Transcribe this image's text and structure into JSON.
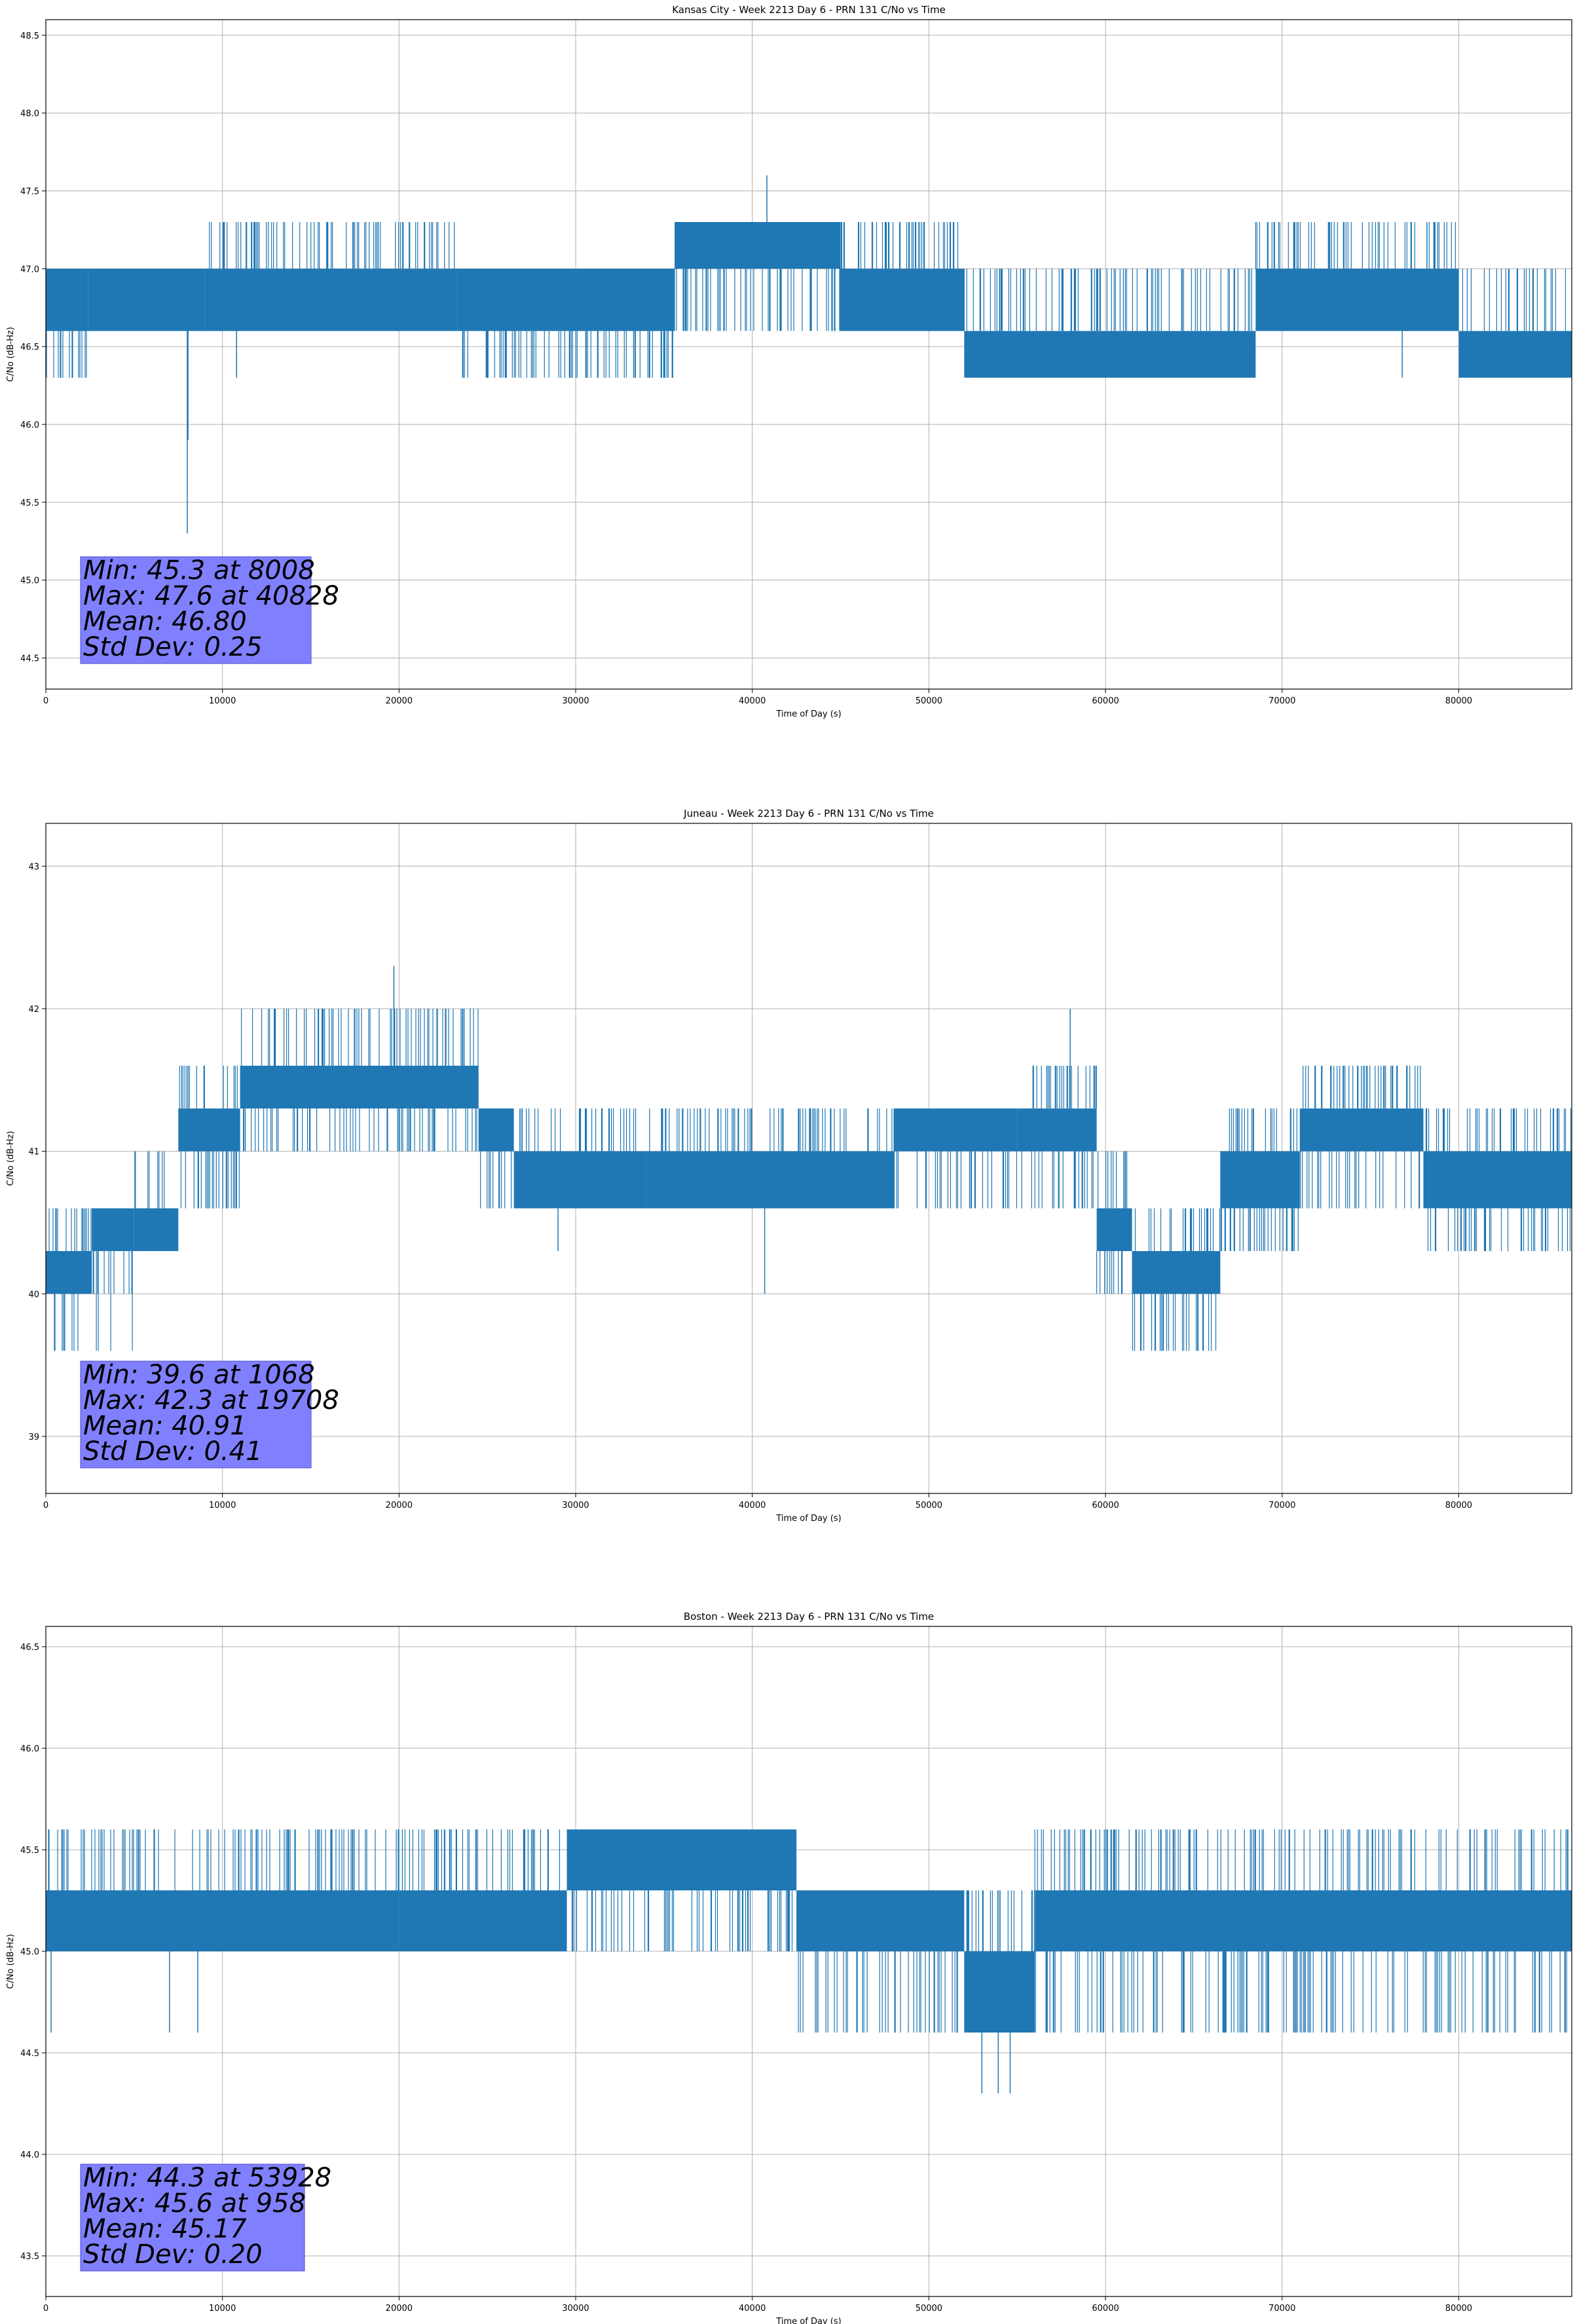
{
  "colors": {
    "series": "#1f77b4",
    "grid": "#b0b0b0",
    "stats_box": "#8080ff",
    "axes": "#000000"
  },
  "chart_data": [
    {
      "type": "line",
      "title": "Kansas City - Week 2213 Day 6 - PRN 131 C/No vs Time",
      "xlabel": "Time of Day (s)",
      "ylabel": "C/No (dB-Hz)",
      "xlim": [
        0,
        86400
      ],
      "ylim": [
        44.3,
        48.6
      ],
      "xticks": [
        0,
        10000,
        20000,
        30000,
        40000,
        50000,
        60000,
        70000,
        80000
      ],
      "yticks": [
        44.5,
        45.0,
        45.5,
        46.0,
        46.5,
        47.0,
        47.5,
        48.0,
        48.5
      ],
      "ytick_labels": [
        "44.5",
        "45.0",
        "45.5",
        "46.0",
        "46.5",
        "47.0",
        "47.5",
        "48.0",
        "48.5"
      ],
      "grid": true,
      "levels": [
        46.3,
        46.6,
        47.0,
        47.3
      ],
      "segments": [
        {
          "x": [
            0,
            2400
          ],
          "range": [
            46.3,
            47.0
          ],
          "band": [
            46.6,
            47.0
          ]
        },
        {
          "x": [
            2400,
            9000
          ],
          "range": [
            46.6,
            47.0
          ],
          "band": [
            46.6,
            47.0
          ]
        },
        {
          "x": [
            9000,
            23300
          ],
          "range": [
            46.6,
            47.3
          ],
          "band": [
            46.6,
            47.0
          ]
        },
        {
          "x": [
            23300,
            35600
          ],
          "range": [
            46.3,
            47.0
          ],
          "band": [
            46.6,
            47.0
          ]
        },
        {
          "x": [
            35600,
            45000
          ],
          "range": [
            46.6,
            47.3
          ],
          "band": [
            47.0,
            47.3
          ]
        },
        {
          "x": [
            45000,
            52000
          ],
          "range": [
            46.6,
            47.3
          ],
          "band": [
            46.6,
            47.0
          ]
        },
        {
          "x": [
            52000,
            68500
          ],
          "range": [
            46.3,
            47.0
          ],
          "band": [
            46.3,
            46.6
          ]
        },
        {
          "x": [
            68500,
            80000
          ],
          "range": [
            46.6,
            47.3
          ],
          "band": [
            46.6,
            47.0
          ]
        },
        {
          "x": [
            80000,
            86400
          ],
          "range": [
            46.3,
            47.0
          ],
          "band": [
            46.3,
            46.6
          ]
        }
      ],
      "spikes": [
        {
          "x": 8008,
          "from": 46.6,
          "to": 45.3
        },
        {
          "x": 8050,
          "from": 46.6,
          "to": 45.9
        },
        {
          "x": 40828,
          "from": 47.3,
          "to": 47.6
        },
        {
          "x": 10800,
          "from": 46.6,
          "to": 46.3
        },
        {
          "x": 54000,
          "from": 46.3,
          "to": 47.0
        },
        {
          "x": 72700,
          "from": 47.0,
          "to": 47.3
        },
        {
          "x": 78200,
          "from": 47.0,
          "to": 47.3
        },
        {
          "x": 76800,
          "from": 46.6,
          "to": 46.3
        }
      ],
      "stats": {
        "min": "Min: 45.3 at 8008",
        "max": "Max: 47.6 at 40828",
        "mean": "Mean: 46.80",
        "std": "Std Dev: 0.25"
      }
    },
    {
      "type": "line",
      "title": "Juneau - Week 2213 Day 6 - PRN 131 C/No vs Time",
      "xlabel": "Time of Day (s)",
      "ylabel": "C/No (dB-Hz)",
      "xlim": [
        0,
        86400
      ],
      "ylim": [
        38.6,
        43.3
      ],
      "xticks": [
        0,
        10000,
        20000,
        30000,
        40000,
        50000,
        60000,
        70000,
        80000
      ],
      "yticks": [
        39,
        40,
        41,
        42,
        43
      ],
      "ytick_labels": [
        "39",
        "40",
        "41",
        "42",
        "43"
      ],
      "grid": true,
      "levels": [
        39.6,
        40.0,
        40.3,
        40.6,
        41.0,
        41.3,
        41.6,
        42.0,
        42.3
      ],
      "segments": [
        {
          "x": [
            0,
            2600
          ],
          "range": [
            39.6,
            40.6
          ],
          "band": [
            40.0,
            40.3
          ]
        },
        {
          "x": [
            2600,
            5000
          ],
          "range": [
            39.6,
            40.6
          ],
          "band": [
            40.3,
            40.6
          ]
        },
        {
          "x": [
            5000,
            7500
          ],
          "range": [
            40.3,
            41.0
          ],
          "band": [
            40.3,
            40.6
          ]
        },
        {
          "x": [
            7500,
            11000
          ],
          "range": [
            40.6,
            41.6
          ],
          "band": [
            41.0,
            41.3
          ]
        },
        {
          "x": [
            11000,
            16500
          ],
          "range": [
            41.0,
            42.0
          ],
          "band": [
            41.3,
            41.6
          ]
        },
        {
          "x": [
            16500,
            24500
          ],
          "range": [
            41.0,
            42.0
          ],
          "band": [
            41.3,
            41.6
          ]
        },
        {
          "x": [
            24500,
            26500
          ],
          "range": [
            40.6,
            41.3
          ],
          "band": [
            41.0,
            41.3
          ]
        },
        {
          "x": [
            26500,
            34000
          ],
          "range": [
            40.6,
            41.3
          ],
          "band": [
            40.6,
            41.0
          ]
        },
        {
          "x": [
            34000,
            48000
          ],
          "range": [
            40.6,
            41.3
          ],
          "band": [
            40.6,
            41.0
          ]
        },
        {
          "x": [
            48000,
            55000
          ],
          "range": [
            40.6,
            41.3
          ],
          "band": [
            41.0,
            41.3
          ]
        },
        {
          "x": [
            55000,
            59500
          ],
          "range": [
            40.6,
            41.6
          ],
          "band": [
            41.0,
            41.3
          ]
        },
        {
          "x": [
            59500,
            61500
          ],
          "range": [
            40.0,
            41.0
          ],
          "band": [
            40.3,
            40.6
          ]
        },
        {
          "x": [
            61500,
            66500
          ],
          "range": [
            39.6,
            40.6
          ],
          "band": [
            40.0,
            40.3
          ]
        },
        {
          "x": [
            66500,
            71000
          ],
          "range": [
            40.3,
            41.3
          ],
          "band": [
            40.6,
            41.0
          ]
        },
        {
          "x": [
            71000,
            78000
          ],
          "range": [
            40.6,
            41.6
          ],
          "band": [
            41.0,
            41.3
          ]
        },
        {
          "x": [
            78000,
            86400
          ],
          "range": [
            40.3,
            41.3
          ],
          "band": [
            40.6,
            41.0
          ]
        }
      ],
      "spikes": [
        {
          "x": 19708,
          "from": 41.6,
          "to": 42.3
        },
        {
          "x": 19750,
          "from": 41.6,
          "to": 42.0
        },
        {
          "x": 58000,
          "from": 41.3,
          "to": 42.0
        },
        {
          "x": 40700,
          "from": 40.6,
          "to": 40.0
        },
        {
          "x": 1068,
          "from": 40.0,
          "to": 39.6
        },
        {
          "x": 29000,
          "from": 40.6,
          "to": 40.3
        }
      ],
      "stats": {
        "min": "Min: 39.6 at 1068",
        "max": "Max: 42.3 at 19708",
        "mean": "Mean: 40.91",
        "std": "Std Dev: 0.41"
      }
    },
    {
      "type": "line",
      "title": "Boston - Week 2213 Day 6 - PRN 131 C/No vs Time",
      "xlabel": "Time of Day (s)",
      "ylabel": "C/No (dB-Hz)",
      "xlim": [
        0,
        86400
      ],
      "ylim": [
        43.3,
        46.6
      ],
      "xticks": [
        0,
        10000,
        20000,
        30000,
        40000,
        50000,
        60000,
        70000,
        80000
      ],
      "yticks": [
        43.5,
        44.0,
        44.5,
        45.0,
        45.5,
        46.0,
        46.5
      ],
      "ytick_labels": [
        "43.5",
        "44.0",
        "44.5",
        "45.0",
        "45.5",
        "46.0",
        "46.5"
      ],
      "grid": true,
      "levels": [
        44.3,
        44.6,
        45.0,
        45.3,
        45.6
      ],
      "segments": [
        {
          "x": [
            0,
            20000
          ],
          "range": [
            45.0,
            45.6
          ],
          "band": [
            45.0,
            45.3
          ]
        },
        {
          "x": [
            20000,
            29500
          ],
          "range": [
            45.0,
            45.6
          ],
          "band": [
            45.0,
            45.3
          ]
        },
        {
          "x": [
            29500,
            42500
          ],
          "range": [
            45.0,
            45.6
          ],
          "band": [
            45.3,
            45.6
          ]
        },
        {
          "x": [
            42500,
            52000
          ],
          "range": [
            44.6,
            45.3
          ],
          "band": [
            45.0,
            45.3
          ]
        },
        {
          "x": [
            52000,
            56000
          ],
          "range": [
            44.6,
            45.3
          ],
          "band": [
            44.6,
            45.0
          ]
        },
        {
          "x": [
            56000,
            86400
          ],
          "range": [
            44.6,
            45.6
          ],
          "band": [
            45.0,
            45.3
          ]
        }
      ],
      "spikes": [
        {
          "x": 53928,
          "from": 44.6,
          "to": 44.3
        },
        {
          "x": 53000,
          "from": 44.6,
          "to": 44.3
        },
        {
          "x": 54600,
          "from": 44.6,
          "to": 44.3
        },
        {
          "x": 958,
          "from": 45.3,
          "to": 45.6
        },
        {
          "x": 300,
          "from": 45.0,
          "to": 44.6
        },
        {
          "x": 7000,
          "from": 45.0,
          "to": 44.6
        },
        {
          "x": 8600,
          "from": 45.0,
          "to": 44.6
        }
      ],
      "stats": {
        "min": "Min: 44.3 at 53928",
        "max": "Max: 45.6 at 958",
        "mean": "Mean: 45.17",
        "std": "Std Dev: 0.20"
      }
    }
  ]
}
